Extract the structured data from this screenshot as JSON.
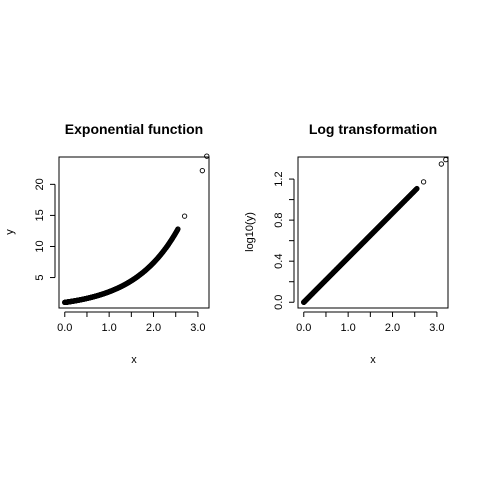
{
  "chart_data": [
    {
      "type": "scatter",
      "title": "Exponential function",
      "xlabel": "x",
      "ylabel": "y",
      "xlim": [
        -0.13,
        3.25
      ],
      "ylim": [
        0.1,
        24.4
      ],
      "xticks": [
        0.0,
        0.5,
        1.0,
        1.5,
        2.0,
        2.5,
        3.0
      ],
      "xtick_labels": [
        "0.0",
        "",
        "1.0",
        "",
        "2.0",
        "",
        "3.0"
      ],
      "yticks": [
        5,
        10,
        15,
        20
      ],
      "ytick_labels": [
        "5",
        "10",
        "15",
        "20"
      ],
      "function": "y = e^x",
      "x_dense_range": [
        0.0,
        2.55
      ],
      "x_outliers": [
        2.7,
        3.1,
        3.2
      ],
      "grid": false,
      "marker": "open-circle"
    },
    {
      "type": "scatter",
      "title": "Log transformation",
      "xlabel": "x",
      "ylabel": "log10(y)",
      "xlim": [
        -0.13,
        3.25
      ],
      "ylim": [
        -0.056,
        1.415
      ],
      "xticks": [
        0.0,
        0.5,
        1.0,
        1.5,
        2.0,
        2.5,
        3.0
      ],
      "xtick_labels": [
        "0.0",
        "",
        "1.0",
        "",
        "2.0",
        "",
        "3.0"
      ],
      "yticks": [
        0.0,
        0.2,
        0.4,
        0.6,
        0.8,
        1.0,
        1.2
      ],
      "ytick_labels": [
        "0.0",
        "",
        "0.4",
        "",
        "0.8",
        "",
        "1.2"
      ],
      "function": "log10(e^x)",
      "x_dense_range": [
        0.0,
        2.55
      ],
      "x_outliers": [
        2.7,
        3.1,
        3.2
      ],
      "grid": false,
      "marker": "open-circle"
    }
  ]
}
